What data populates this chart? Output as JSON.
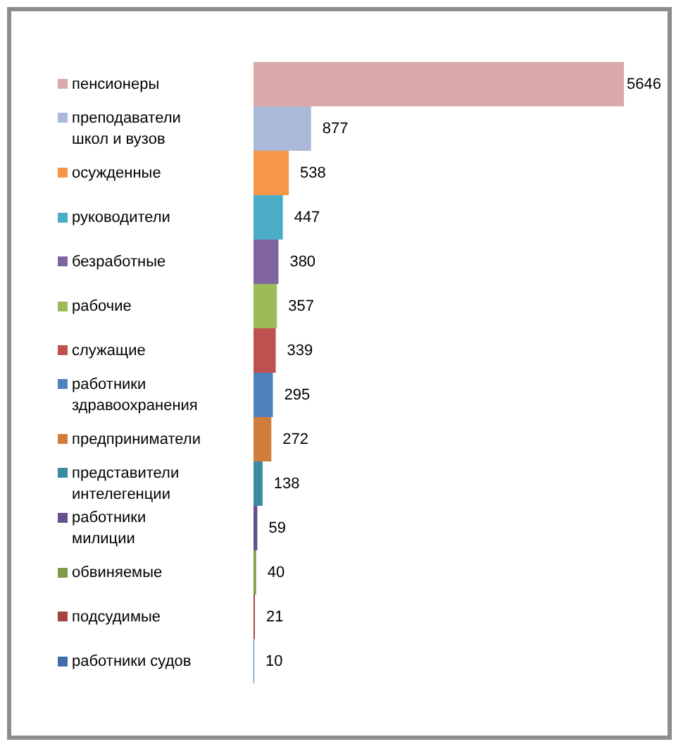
{
  "chart_data": {
    "type": "bar",
    "orientation": "horizontal",
    "categories": [
      "пенсионеры",
      "преподаватели школ и вузов",
      "осужденные",
      "руководители",
      "безработные",
      "рабочие",
      "служащие",
      "работники здравоохранения",
      "предприниматели",
      "представители интелегенции",
      "работники милиции",
      "обвиняемые",
      "подсудимые",
      "работники судов"
    ],
    "values": [
      5646,
      877,
      538,
      447,
      380,
      357,
      339,
      295,
      272,
      138,
      59,
      40,
      21,
      10
    ],
    "colors": [
      "#d9a9aa",
      "#aab9d8",
      "#f79646",
      "#4bacc6",
      "#8064a2",
      "#9bbb59",
      "#c0504d",
      "#4f81bd",
      "#d07d3c",
      "#3a8ba0",
      "#67518d",
      "#7f9a48",
      "#a6433f",
      "#3d6ea9"
    ],
    "data_labels": true,
    "tick_labels": "y"
  }
}
